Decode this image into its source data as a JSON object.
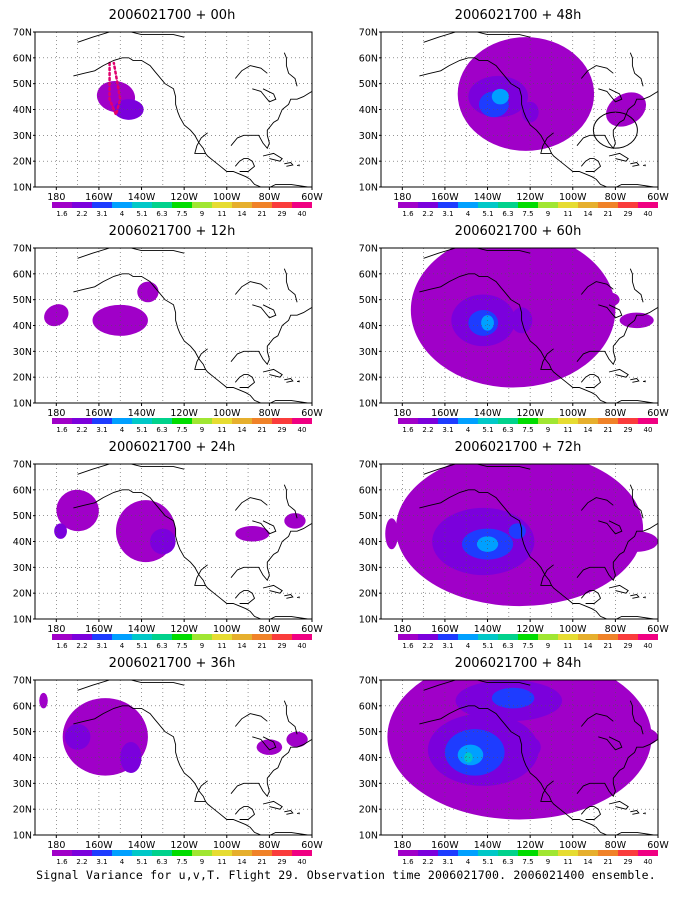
{
  "panels": [
    {
      "title": "2006021700 + 00h"
    },
    {
      "title": "2006021700 + 48h"
    },
    {
      "title": "2006021700 + 12h"
    },
    {
      "title": "2006021700 + 60h"
    },
    {
      "title": "2006021700 + 24h"
    },
    {
      "title": "2006021700 + 72h"
    },
    {
      "title": "2006021700 + 36h"
    },
    {
      "title": "2006021700 + 84h"
    }
  ],
  "lat_labels": [
    "70N",
    "60N",
    "50N",
    "40N",
    "30N",
    "20N",
    "10N"
  ],
  "lon_labels": [
    "180",
    "160W",
    "140W",
    "120W",
    "100W",
    "80W",
    "60W"
  ],
  "legend": {
    "labels": [
      "1.6",
      "2.2",
      "3.1",
      "4",
      "5.1",
      "6.3",
      "7.5",
      "9",
      "11",
      "14",
      "21",
      "29",
      "40"
    ],
    "colors": [
      "#a000c8",
      "#7b00dc",
      "#1e3cff",
      "#00a0ff",
      "#00c8c8",
      "#00d28c",
      "#00dc00",
      "#a0e632",
      "#e6dc32",
      "#e6af2d",
      "#f08228",
      "#fa3c3c",
      "#f00082"
    ]
  },
  "caption": "Signal Variance for u,v,T. Flight 29. Observation time 2006021700. 2006021400 ensemble."
}
